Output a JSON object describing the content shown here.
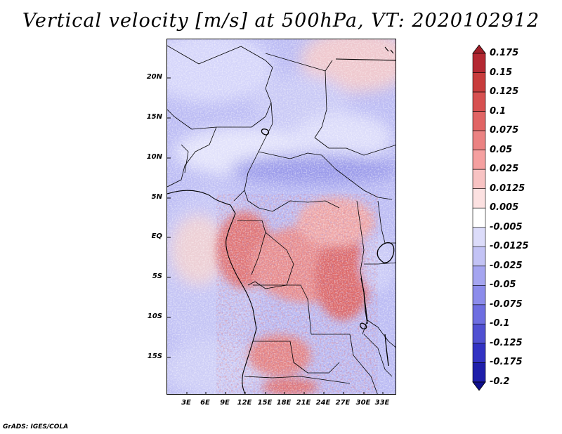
{
  "title": "Vertical velocity [m/s] at 500hPa, VT: 2020102912",
  "map": {
    "variable": "Vertical velocity",
    "units": "m/s",
    "level": "500hPa",
    "valid_time": "2020102912",
    "lat_ticks": [
      "20N",
      "15N",
      "10N",
      "5N",
      "EQ",
      "5S",
      "10S",
      "15S"
    ],
    "lon_ticks": [
      "3E",
      "6E",
      "9E",
      "12E",
      "15E",
      "18E",
      "21E",
      "24E",
      "27E",
      "30E",
      "33E"
    ]
  },
  "colorbar": {
    "labels": [
      "0.175",
      "0.15",
      "0.125",
      "0.1",
      "0.075",
      "0.05",
      "0.025",
      "0.0125",
      "0.005",
      "-0.005",
      "-0.0125",
      "-0.025",
      "-0.05",
      "-0.075",
      "-0.1",
      "-0.125",
      "-0.175",
      "-0.2"
    ],
    "colors": [
      "#a01e28",
      "#b42832",
      "#c83c3c",
      "#d75050",
      "#e16464",
      "#eb8282",
      "#f5a0a0",
      "#f8c3c3",
      "#fce1e1",
      "#ffffff",
      "#dcdcfa",
      "#c3c3f5",
      "#a5a5f0",
      "#8c8ceb",
      "#6e6ee1",
      "#5050d2",
      "#3232c3",
      "#1e1eaa",
      "#0f0f8c"
    ]
  },
  "credit": "GrADS: IGES/COLA"
}
